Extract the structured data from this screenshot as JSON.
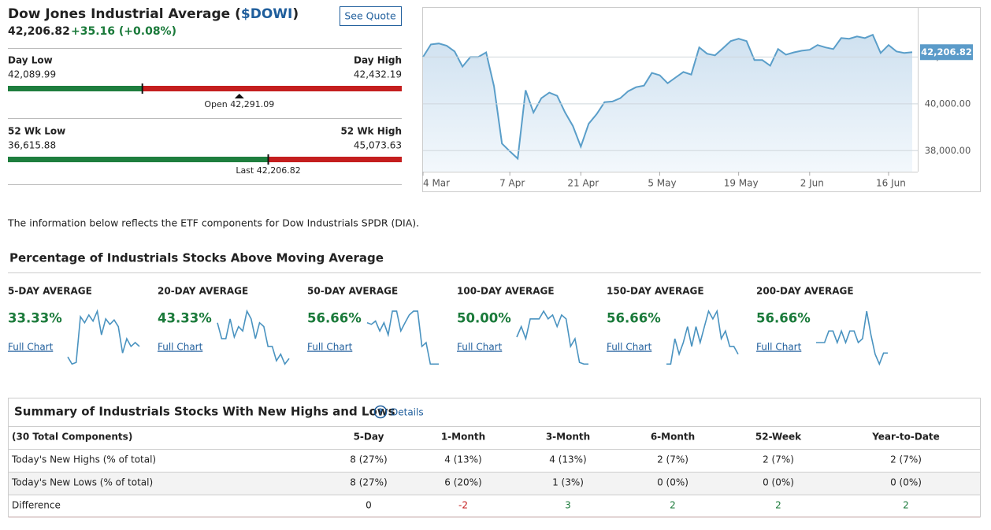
{
  "header": {
    "name": "Dow Jones Industrial Average (",
    "symbol": "$DOWI",
    "name_close": ")",
    "button": "See Quote",
    "price": {
      "value": 42206.82,
      "label": "42,206.82"
    },
    "change": "+35.16 (+0.08%)"
  },
  "day_range": {
    "low_title": "Day Low",
    "high_title": "Day High",
    "low": {
      "value": 42089.99,
      "label": "42,089.99"
    },
    "high": {
      "value": 42432.19,
      "label": "42,432.19"
    },
    "open": {
      "value": 42291.09,
      "label": "Open 42,291.09"
    }
  },
  "week52_range": {
    "low_title": "52 Wk Low",
    "high_title": "52 Wk High",
    "low": {
      "value": 36615.88,
      "label": "36,615.88"
    },
    "high": {
      "value": 45073.63,
      "label": "45,073.63"
    },
    "last": {
      "value": 42206.82,
      "label": "Last 42,206.82"
    }
  },
  "chart_data": {
    "type": "line",
    "series": [
      {
        "color": "#5a9ec9",
        "values": [
          42000,
          42540,
          42580,
          42480,
          42240,
          41590,
          42000,
          42000,
          42200,
          40750,
          38300,
          37970,
          37660,
          40580,
          39630,
          40240,
          40480,
          40340,
          39630,
          39050,
          38170,
          39150,
          39560,
          40070,
          40100,
          40240,
          40540,
          40710,
          40780,
          41320,
          41220,
          40880,
          41120,
          41360,
          41250,
          42410,
          42140,
          42070,
          42370,
          42680,
          42780,
          42680,
          41870,
          41870,
          41630,
          42340,
          42100,
          42200,
          42270,
          42310,
          42510,
          42410,
          42340,
          42810,
          42780,
          42880,
          42810,
          42950,
          42170,
          42510,
          42240,
          42170,
          42207
        ]
      }
    ],
    "xlim": [
      0,
      62
    ],
    "xticks": [
      {
        "value": 0,
        "label": "4 Mar"
      },
      {
        "value": 11,
        "label": "7 Apr"
      },
      {
        "value": 20,
        "label": "21 Apr"
      },
      {
        "value": 30,
        "label": "5 May"
      },
      {
        "value": 40,
        "label": "19 May"
      },
      {
        "value": 49,
        "label": "2 Jun"
      },
      {
        "value": 59,
        "label": "16 Jun"
      }
    ],
    "ylim": [
      37100,
      44100
    ],
    "yticks": [
      {
        "value": 38000,
        "label": "38,000.00"
      },
      {
        "value": 40000,
        "label": "40,000.00"
      },
      {
        "value": 42000,
        "label": "42,000.00"
      }
    ],
    "grid": true,
    "current": {
      "value": 42206.82,
      "label": "42,206.82"
    }
  },
  "info": "The information below reflects the ETF components for Dow Industrials SPDR (DIA).",
  "moving_averages": {
    "title": "Percentage of Industrials Stocks Above Moving Average",
    "spark_ylim": [
      0,
      100
    ],
    "items": [
      {
        "label": "5-DAY AVERAGE",
        "value": "33.33%",
        "link": "Full Chart",
        "spark": [
          14,
          1,
          4,
          87,
          76,
          90,
          79,
          97,
          54,
          83,
          73,
          81,
          69,
          21,
          47,
          33,
          40,
          33
        ]
      },
      {
        "label": "20-DAY AVERAGE",
        "value": "43.33%",
        "link": "Full Chart",
        "spark": [
          76,
          47,
          47,
          83,
          50,
          69,
          61,
          97,
          83,
          47,
          76,
          69,
          33,
          33,
          7,
          19,
          1,
          11
        ]
      },
      {
        "label": "50-DAY AVERAGE",
        "value": "56.66%",
        "link": "Full Chart",
        "spark": [
          76,
          73,
          79,
          61,
          76,
          54,
          97,
          97,
          61,
          76,
          90,
          97,
          97,
          33,
          40,
          1,
          1,
          1
        ]
      },
      {
        "label": "100-DAY AVERAGE",
        "value": "50.00%",
        "link": "Full Chart",
        "spark": [
          50,
          69,
          47,
          83,
          83,
          83,
          97,
          83,
          90,
          69,
          90,
          83,
          33,
          47,
          4,
          1,
          1
        ]
      },
      {
        "label": "150-DAY AVERAGE",
        "value": "56.66%",
        "link": "Full Chart",
        "spark": [
          1,
          1,
          47,
          19,
          40,
          69,
          33,
          69,
          40,
          69,
          97,
          83,
          97,
          47,
          61,
          33,
          33,
          19
        ]
      },
      {
        "label": "200-DAY AVERAGE",
        "value": "56.66%",
        "link": "Full Chart",
        "spark": [
          40,
          40,
          40,
          61,
          61,
          40,
          61,
          40,
          61,
          61,
          40,
          47,
          97,
          54,
          19,
          1,
          21,
          21
        ]
      }
    ]
  },
  "summary": {
    "title": "Summary of Industrials Stocks With New Highs and Lows",
    "help_icon": "?",
    "details": "Details",
    "columns": [
      "(30 Total Components)",
      "5-Day",
      "1-Month",
      "3-Month",
      "6-Month",
      "52-Week",
      "Year-to-Date"
    ],
    "rows": [
      [
        "Today's New Highs (% of total)",
        "8 (27%)",
        "4 (13%)",
        "4 (13%)",
        "2 (7%)",
        "2 (7%)",
        "2 (7%)"
      ],
      [
        "Today's New Lows (% of total)",
        "8 (27%)",
        "6 (20%)",
        "1 (3%)",
        "0 (0%)",
        "0 (0%)",
        "0 (0%)"
      ],
      [
        "Difference",
        0,
        -2,
        3,
        2,
        2,
        2
      ]
    ]
  }
}
